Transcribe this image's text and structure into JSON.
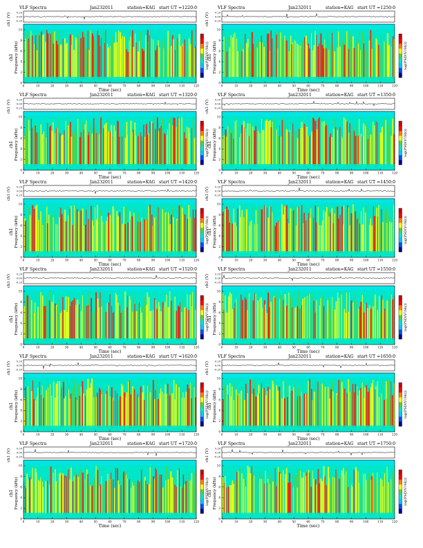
{
  "page": {
    "title_prefix": "VLF Spectra",
    "date": "Jan232011",
    "station": "station=KAG",
    "start_label": "start  UT",
    "xlabel": "Time  (sec)",
    "ylabel_spec": "Frequency  (kHz)",
    "ylabel_ch": "ch1",
    "ylabel_wave": "ch1 (V)",
    "colorbar_label": "log(PSD(V²/Hz))"
  },
  "colors": {
    "background": "#00e6c8",
    "mid": "#ffff00",
    "green": "#55d040",
    "high": "#ff1a00",
    "top_band": "#00e5e5",
    "colorbar": [
      "#00008c",
      "#0050ff",
      "#00c8ff",
      "#00e6c8",
      "#55d040",
      "#ffff00",
      "#ff8000",
      "#ff0000",
      "#c80000"
    ]
  },
  "chart_data": [
    {
      "type": "heatmap",
      "start_ut": "=1220:0",
      "x_range": [
        0,
        120
      ],
      "y_range": [
        0,
        10
      ],
      "xticks": [
        0,
        10,
        20,
        30,
        40,
        50,
        60,
        70,
        80,
        90,
        100,
        110,
        120
      ],
      "yticks": [
        0,
        2,
        4,
        6,
        8,
        10
      ],
      "wave_yticks": [
        "0.20",
        "0.00",
        "-0.20"
      ]
    },
    {
      "type": "heatmap",
      "start_ut": "=1250:0",
      "x_range": [
        0,
        120
      ],
      "y_range": [
        0,
        10
      ],
      "xticks": [
        0,
        10,
        20,
        30,
        40,
        50,
        60,
        70,
        80,
        90,
        100,
        110,
        120
      ],
      "yticks": [
        0,
        2,
        4,
        6,
        8,
        10
      ],
      "wave_yticks": [
        "0.20",
        "0.00",
        "-0.20"
      ]
    },
    {
      "type": "heatmap",
      "start_ut": "=1320:0",
      "x_range": [
        0,
        120
      ],
      "y_range": [
        0,
        10
      ],
      "xticks": [
        0,
        10,
        20,
        30,
        40,
        50,
        60,
        70,
        80,
        90,
        100,
        110,
        120
      ],
      "yticks": [
        0,
        2,
        4,
        6,
        8,
        10
      ],
      "wave_yticks": [
        "0.20",
        "0.00",
        "-0.20"
      ]
    },
    {
      "type": "heatmap",
      "start_ut": "=1350:0",
      "x_range": [
        0,
        120
      ],
      "y_range": [
        0,
        10
      ],
      "xticks": [
        0,
        10,
        20,
        30,
        40,
        50,
        60,
        70,
        80,
        90,
        100,
        110,
        120
      ],
      "yticks": [
        0,
        2,
        4,
        6,
        8,
        10
      ],
      "wave_yticks": [
        "0.20",
        "0.00",
        "-0.20"
      ]
    },
    {
      "type": "heatmap",
      "start_ut": "=1420:0",
      "x_range": [
        0,
        120
      ],
      "y_range": [
        0,
        10
      ],
      "xticks": [
        0,
        10,
        20,
        30,
        40,
        50,
        60,
        70,
        80,
        90,
        100,
        110,
        120
      ],
      "yticks": [
        0,
        2,
        4,
        6,
        8,
        10
      ],
      "wave_yticks": [
        "0.20",
        "0.00",
        "-0.20"
      ]
    },
    {
      "type": "heatmap",
      "start_ut": "=1450:0",
      "x_range": [
        0,
        120
      ],
      "y_range": [
        0,
        10
      ],
      "xticks": [
        0,
        10,
        20,
        30,
        40,
        50,
        60,
        70,
        80,
        90,
        100,
        110,
        120
      ],
      "yticks": [
        0,
        2,
        4,
        6,
        8,
        10
      ],
      "wave_yticks": [
        "0.20",
        "0.00",
        "-0.20"
      ]
    },
    {
      "type": "heatmap",
      "start_ut": "=1520:0",
      "x_range": [
        0,
        120
      ],
      "y_range": [
        0,
        10
      ],
      "xticks": [
        0,
        10,
        20,
        30,
        40,
        50,
        60,
        70,
        80,
        90,
        100,
        110,
        120
      ],
      "yticks": [
        0,
        2,
        4,
        6,
        8,
        10
      ],
      "wave_yticks": [
        "0.20",
        "0.00",
        "-0.20"
      ]
    },
    {
      "type": "heatmap",
      "start_ut": "=1550:0",
      "x_range": [
        0,
        120
      ],
      "y_range": [
        0,
        10
      ],
      "xticks": [
        0,
        10,
        20,
        30,
        40,
        50,
        60,
        70,
        80,
        90,
        100,
        110,
        120
      ],
      "yticks": [
        0,
        2,
        4,
        6,
        8,
        10
      ],
      "wave_yticks": [
        "0.20",
        "0.00",
        "-0.20"
      ]
    },
    {
      "type": "heatmap",
      "start_ut": "=1620:0",
      "x_range": [
        0,
        120
      ],
      "y_range": [
        0,
        10
      ],
      "xticks": [
        0,
        10,
        20,
        30,
        40,
        50,
        60,
        70,
        80,
        90,
        100,
        110,
        120
      ],
      "yticks": [
        0,
        2,
        4,
        6,
        8,
        10
      ],
      "wave_yticks": [
        "0.20",
        "0.00",
        "-0.20"
      ]
    },
    {
      "type": "heatmap",
      "start_ut": "=1650:0",
      "x_range": [
        0,
        120
      ],
      "y_range": [
        0,
        10
      ],
      "xticks": [
        0,
        10,
        20,
        30,
        40,
        50,
        60,
        70,
        80,
        90,
        100,
        110,
        120
      ],
      "yticks": [
        0,
        2,
        4,
        6,
        8,
        10
      ],
      "wave_yticks": [
        "0.20",
        "0.00",
        "-0.20"
      ]
    },
    {
      "type": "heatmap",
      "start_ut": "=1720:0",
      "x_range": [
        0,
        120
      ],
      "y_range": [
        0,
        10
      ],
      "xticks": [
        0,
        10,
        20,
        30,
        40,
        50,
        60,
        70,
        80,
        90,
        100,
        110,
        120
      ],
      "yticks": [
        0,
        2,
        4,
        6,
        8,
        10
      ],
      "wave_yticks": [
        "0.20",
        "0.00",
        "-0.20"
      ]
    },
    {
      "type": "heatmap",
      "start_ut": "=1750:0",
      "x_range": [
        0,
        120
      ],
      "y_range": [
        0,
        10
      ],
      "xticks": [
        0,
        10,
        20,
        30,
        40,
        50,
        60,
        70,
        80,
        90,
        100,
        110,
        120
      ],
      "yticks": [
        0,
        2,
        4,
        6,
        8,
        10
      ],
      "wave_yticks": [
        "0.20",
        "0.00",
        "-0.20"
      ]
    }
  ]
}
